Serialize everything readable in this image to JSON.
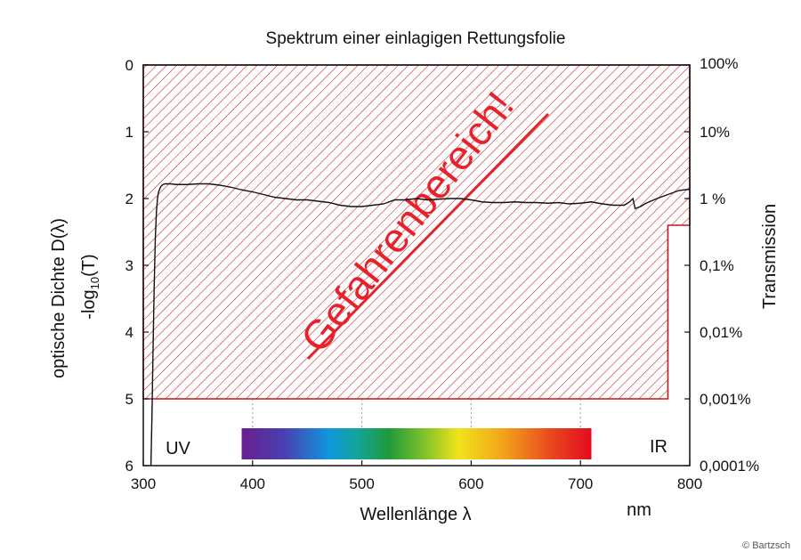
{
  "chart_data": {
    "type": "line",
    "title": "Spektrum einer einlagigen Rettungsfolie",
    "xlabel": "Wellenlänge λ",
    "xunit": "nm",
    "ylabel_left_1": "optische Dichte D(λ)",
    "ylabel_left_2": "-log",
    "ylabel_left_sub": "10",
    "ylabel_left_3": "(T)",
    "ylabel_right": "Transmission",
    "xlim": [
      300,
      800
    ],
    "ylim": [
      0,
      6
    ],
    "y_inverted": true,
    "x_ticks": [
      "300",
      "400",
      "500",
      "600",
      "700",
      "800"
    ],
    "y_ticks": [
      "0",
      "1",
      "2",
      "3",
      "4",
      "5",
      "6"
    ],
    "right_ticks": [
      "100%",
      "10%",
      "1 %",
      "0,1%",
      "0,01%",
      "0,001%",
      "0,0001%"
    ],
    "danger_label": "Gefahrenbereich!",
    "danger_color": "#c4161c",
    "danger_zone": {
      "x_from": 300,
      "x_to": 780,
      "od_to": 5,
      "right_x_from": 780,
      "right_od_to": 2.4
    },
    "region_labels": {
      "uv": "UV",
      "ir": "IR"
    },
    "visible_spectrum_nm": [
      390,
      710
    ],
    "grid": "vertical dotted at 400, 500, 600, 700",
    "series": [
      {
        "x": [
          307,
          308,
          309,
          310,
          311,
          312,
          313,
          314,
          316,
          318,
          320,
          325,
          330,
          340,
          350,
          360,
          370,
          380,
          390,
          400,
          410,
          420,
          430,
          440,
          450,
          460,
          470,
          480,
          490,
          500,
          510,
          520,
          530,
          540,
          550,
          560,
          570,
          580,
          590,
          600,
          610,
          620,
          630,
          640,
          650,
          660,
          670,
          680,
          690,
          700,
          710,
          720,
          730,
          740,
          745,
          748,
          750,
          755,
          760,
          770,
          780,
          790,
          800
        ],
        "y": [
          6.0,
          5.2,
          4.2,
          3.3,
          2.6,
          2.2,
          2.0,
          1.9,
          1.82,
          1.79,
          1.78,
          1.78,
          1.79,
          1.79,
          1.78,
          1.78,
          1.8,
          1.83,
          1.87,
          1.9,
          1.94,
          1.98,
          2.0,
          2.02,
          2.02,
          2.04,
          2.06,
          2.1,
          2.12,
          2.12,
          2.1,
          2.08,
          2.02,
          2.02,
          2.0,
          2.02,
          2.01,
          2.0,
          2.0,
          2.02,
          2.05,
          2.06,
          2.06,
          2.05,
          2.06,
          2.06,
          2.07,
          2.06,
          2.08,
          2.07,
          2.05,
          2.08,
          2.1,
          2.1,
          2.05,
          2.0,
          2.15,
          2.12,
          2.07,
          2.0,
          1.94,
          1.88,
          1.86
        ]
      }
    ]
  },
  "copyright": "© Bartzsch"
}
